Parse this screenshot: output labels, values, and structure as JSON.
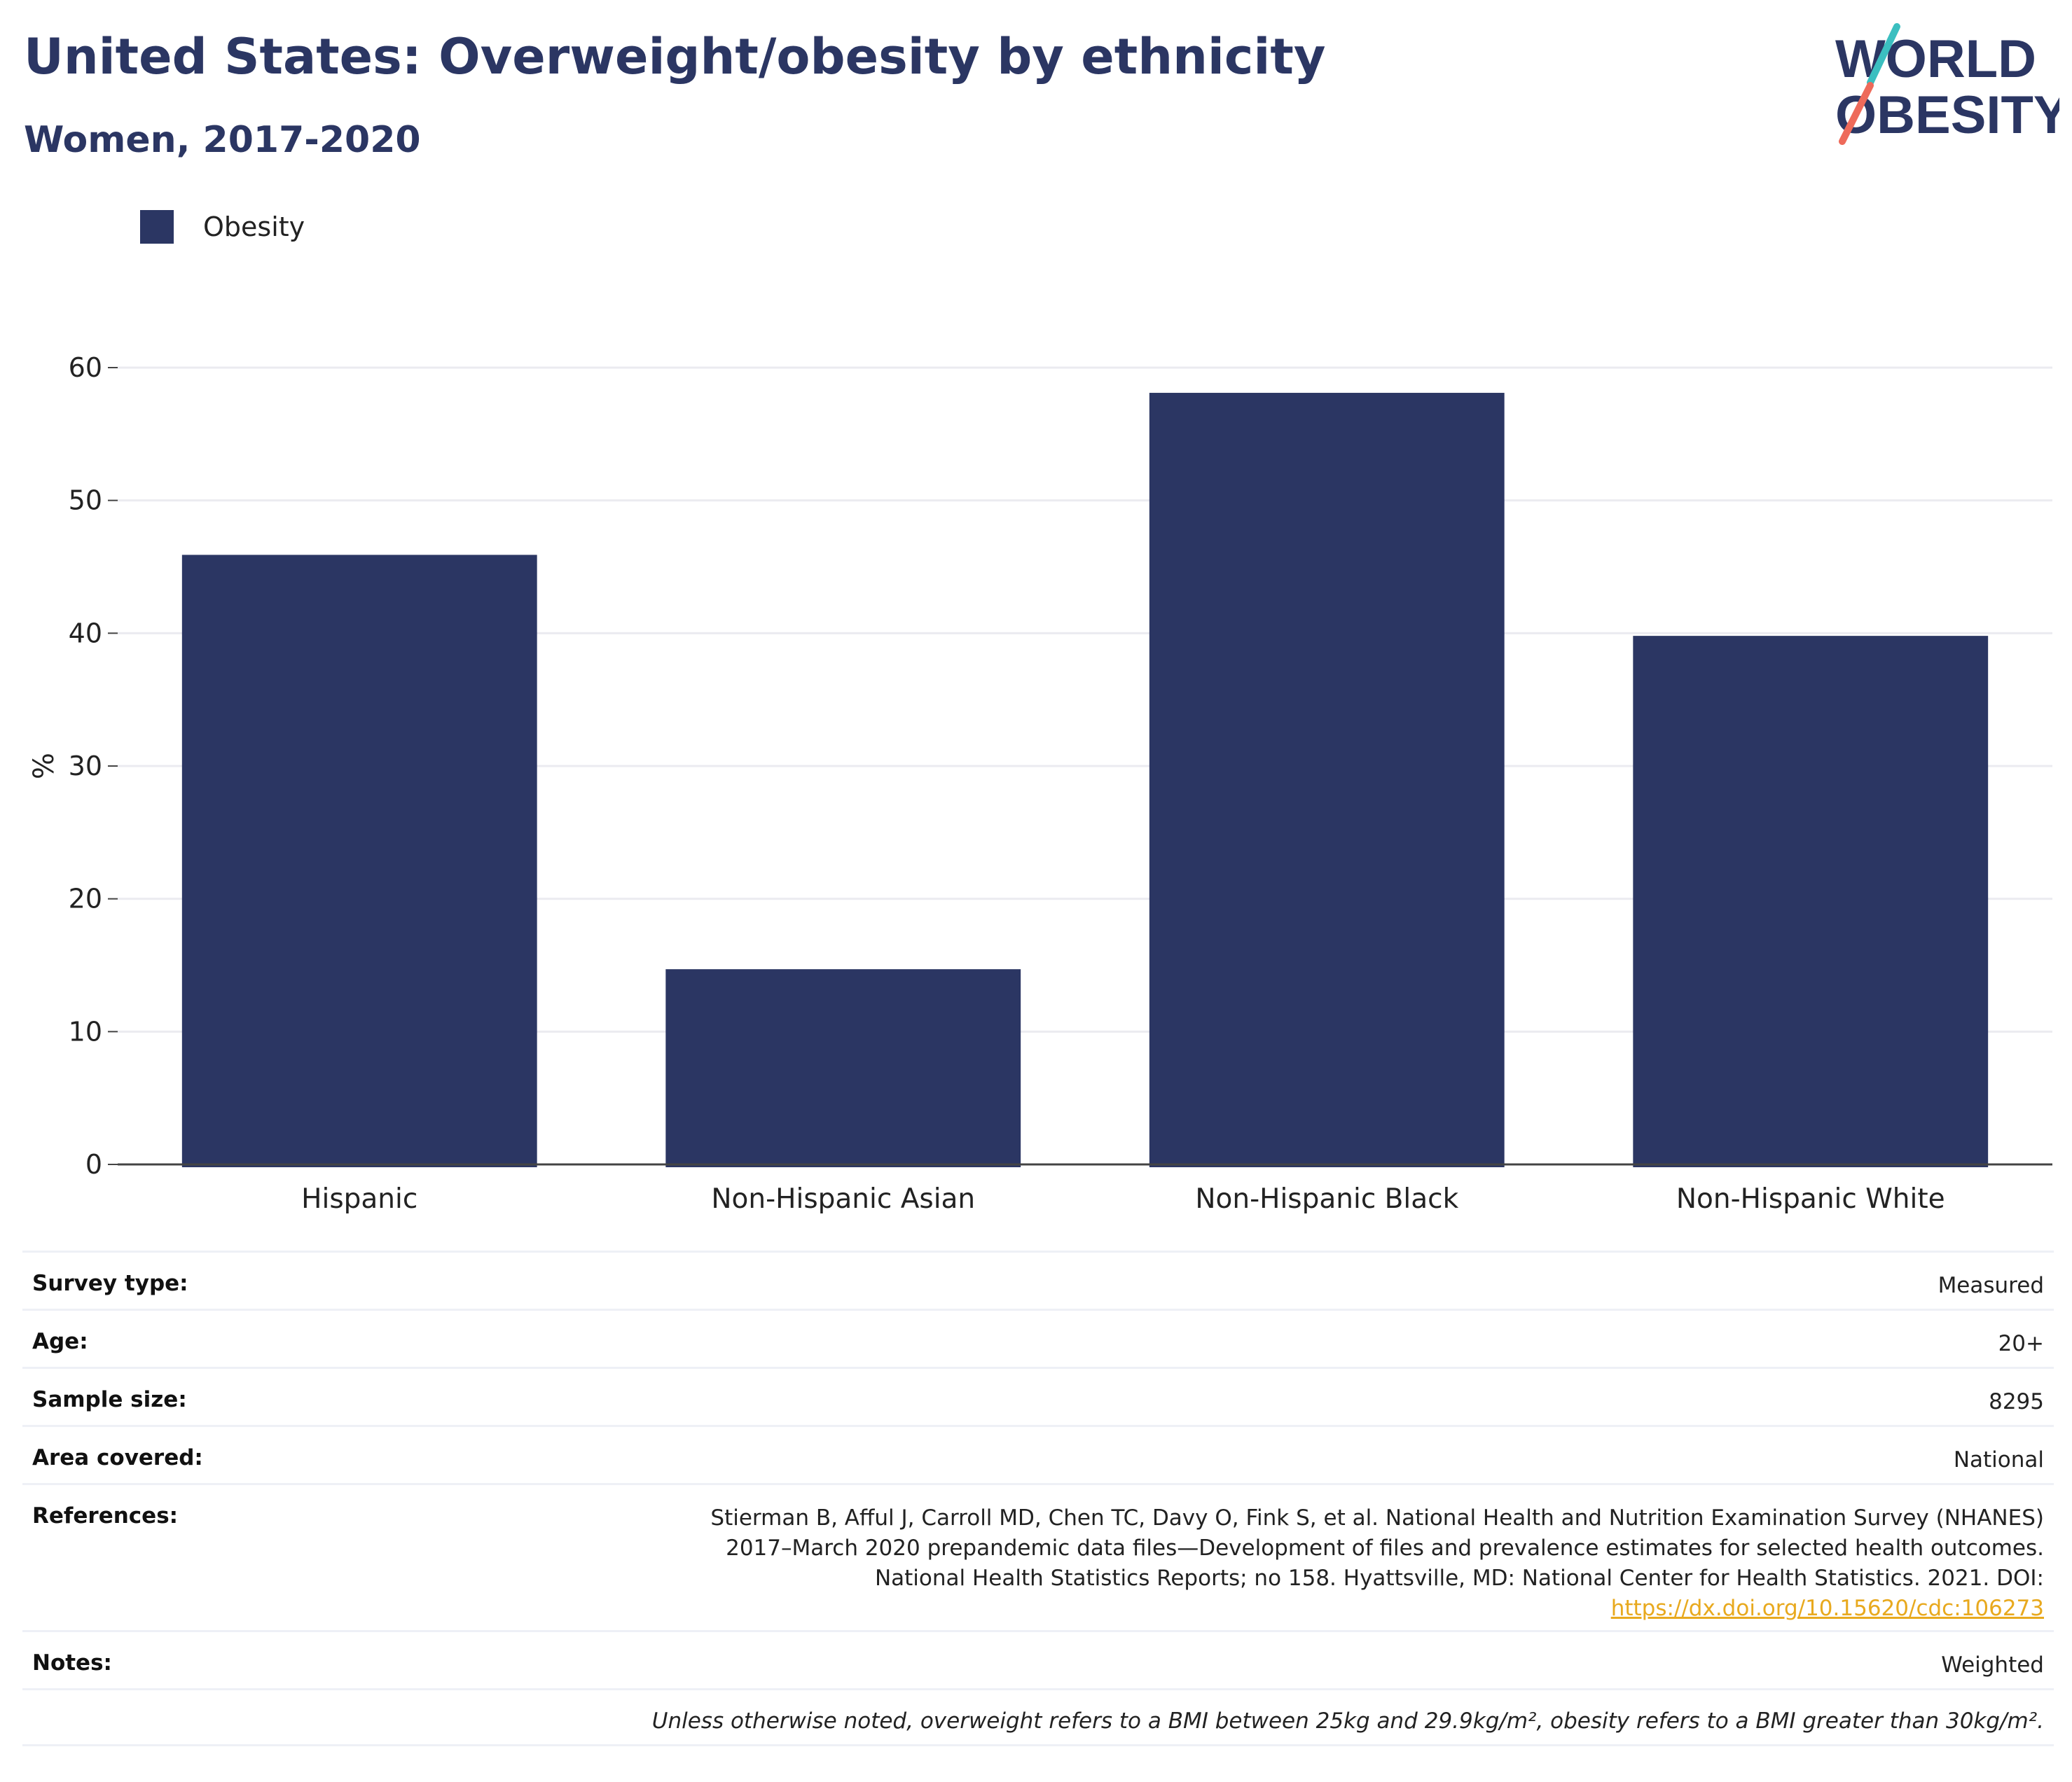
{
  "title": "United States: Overweight/obesity by ethnicity",
  "subtitle": "Women, 2017-2020",
  "logo": {
    "line1": "WORLD",
    "line2": "OBESITY",
    "colors": [
      "#2b3663",
      "#3bbfc0",
      "#ee6a5a"
    ]
  },
  "legend": {
    "label": "Obesity",
    "color": "#2b3663"
  },
  "chart_data": {
    "type": "bar",
    "categories": [
      "Hispanic",
      "Non-Hispanic Asian",
      "Non-Hispanic Black",
      "Non-Hispanic White"
    ],
    "series": [
      {
        "name": "Obesity",
        "values": [
          45.9,
          14.7,
          58.1,
          39.8
        ]
      }
    ],
    "ylabel": "%",
    "xlabel": "",
    "ylim": [
      0,
      60
    ],
    "yticks": [
      0,
      10,
      20,
      30,
      40,
      50,
      60
    ],
    "grid": true,
    "legend_position": "top-left",
    "bar_color": "#2b3663"
  },
  "info": {
    "survey_type": {
      "label": "Survey type:",
      "value": "Measured"
    },
    "age": {
      "label": "Age:",
      "value": "20+"
    },
    "sample_size": {
      "label": "Sample size:",
      "value": "8295"
    },
    "area": {
      "label": "Area covered:",
      "value": "National"
    },
    "references": {
      "label": "References:",
      "text": "Stierman B, Afful J, Carroll MD, Chen TC, Davy O, Fink S, et al. National Health and Nutrition Examination Survey (NHANES) 2017–March 2020 prepandemic data files—Development of files and prevalence estimates for selected health outcomes. National Health Statistics Reports; no 158. Hyattsville, MD: National Center for Health Statistics. 2021. DOI:",
      "link": "https://dx.doi.org/10.15620/cdc:106273"
    },
    "notes": {
      "label": "Notes:",
      "value": "Weighted"
    },
    "footnote": "Unless otherwise noted, overweight refers to a BMI between 25kg and 29.9kg/m², obesity refers to a BMI greater than 30kg/m²."
  }
}
